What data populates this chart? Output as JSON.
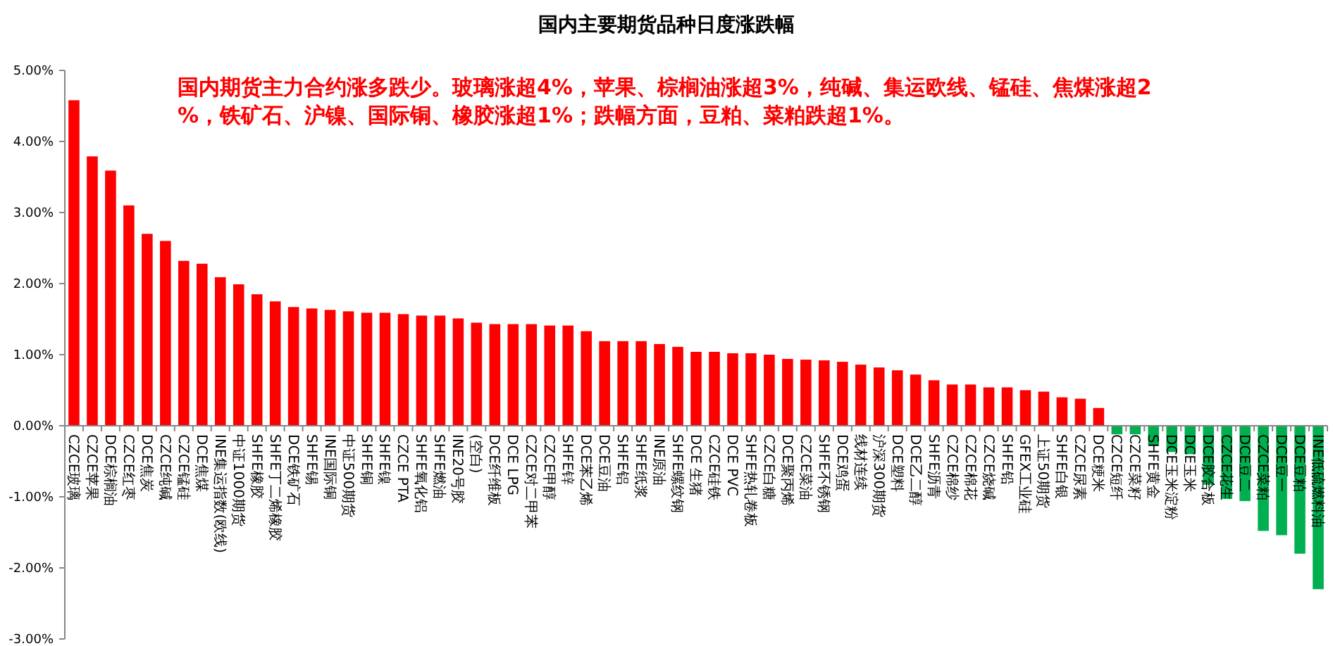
{
  "chart_data": {
    "type": "bar",
    "title": "国内主要期货品种日度涨跌幅",
    "annotations": [
      "国内期货主力合约涨多跌少。玻璃涨超4%，苹果、棕榈油涨超3%，纯碱、集运欧线、锰硅、焦煤涨超2%，铁矿石、沪镍、国际铜、橡胶涨超1%；跌幅方面，豆粕、菜粕跌超1%。"
    ],
    "categories": [
      "CZCE玻璃",
      "CZCE苹果",
      "DCE棕榈油",
      "CZCE红枣",
      "DCE焦炭",
      "CZCE纯碱",
      "CZCE锰硅",
      "DCE焦煤",
      "INE集运指数(欧线)",
      "中证1000期货",
      "SHFE橡胶",
      "SHFE丁二烯橡胶",
      "DCE铁矿石",
      "SHFE锡",
      "INE国际铜",
      "中证500期货",
      "SHFE铜",
      "SHFE镍",
      "CZCE PTA",
      "SHFE氧化铝",
      "SHFE燃油",
      "INE20号胶",
      "(空白)",
      "DCE纤维板",
      "DCE LPG",
      "CZCE对二甲苯",
      "CZCE甲醇",
      "SHFE锌",
      "DCE苯乙烯",
      "DCE豆油",
      "SHFE铝",
      "SHFE纸浆",
      "INE原油",
      "SHFE螺纹钢",
      "DCE 生猪",
      "CZCE硅铁",
      "DCE PVC",
      "SHFE热轧卷板",
      "CZCE白糖",
      "DCE聚丙烯",
      "CZCE菜油",
      "SHFE不锈钢",
      "DCE鸡蛋",
      "线材连续",
      "沪深300期货",
      "DCE塑料",
      "DCE乙二醇",
      "SHFE沥青",
      "CZCE棉纱",
      "CZCE棉花",
      "CZCE烧碱",
      "SHFE铅",
      "GFEX工业硅",
      "上证50期货",
      "SHFE白银",
      "CZCE尿素",
      "DCE粳米",
      "CZCE短纤",
      "CZCE菜籽",
      "SHFE黄金",
      "DCE玉米淀粉",
      "DCE玉米",
      "DCE胶合板",
      "CZCE花生",
      "DCE豆二",
      "CZCE菜粕",
      "DCE豆一",
      "DCE豆粕",
      "INE低硫燃料油"
    ],
    "values": [
      4.58,
      3.79,
      3.59,
      3.1,
      2.7,
      2.6,
      2.32,
      2.28,
      2.09,
      1.99,
      1.85,
      1.75,
      1.67,
      1.65,
      1.63,
      1.61,
      1.59,
      1.59,
      1.57,
      1.55,
      1.55,
      1.51,
      1.45,
      1.43,
      1.43,
      1.43,
      1.41,
      1.41,
      1.33,
      1.19,
      1.19,
      1.19,
      1.15,
      1.11,
      1.04,
      1.04,
      1.02,
      1.02,
      1.0,
      0.94,
      0.93,
      0.92,
      0.9,
      0.86,
      0.82,
      0.78,
      0.72,
      0.64,
      0.58,
      0.58,
      0.54,
      0.54,
      0.5,
      0.48,
      0.4,
      0.38,
      0.25,
      -0.12,
      -0.12,
      -0.27,
      -0.37,
      -0.4,
      -0.83,
      -1.03,
      -1.06,
      -1.48,
      -1.54,
      -1.8,
      -2.3
    ],
    "colors": [
      "#ff0000",
      "#ff0000",
      "#ff0000",
      "#ff0000",
      "#ff0000",
      "#ff0000",
      "#ff0000",
      "#ff0000",
      "#ff0000",
      "#ff0000",
      "#ff0000",
      "#ff0000",
      "#ff0000",
      "#ff0000",
      "#ff0000",
      "#ff0000",
      "#ff0000",
      "#ff0000",
      "#ff0000",
      "#ff0000",
      "#ff0000",
      "#ff0000",
      "#ff0000",
      "#ff0000",
      "#ff0000",
      "#ff0000",
      "#ff0000",
      "#ff0000",
      "#ff0000",
      "#ff0000",
      "#ff0000",
      "#ff0000",
      "#ff0000",
      "#ff0000",
      "#ff0000",
      "#ff0000",
      "#ff0000",
      "#ff0000",
      "#ff0000",
      "#ff0000",
      "#ff0000",
      "#ff0000",
      "#ff0000",
      "#ff0000",
      "#ff0000",
      "#ff0000",
      "#ff0000",
      "#ff0000",
      "#ff0000",
      "#ff0000",
      "#ff0000",
      "#ff0000",
      "#ff0000",
      "#ff0000",
      "#ff0000",
      "#ff0000",
      "#ff0000",
      "#00b050",
      "#00b050",
      "#00b050",
      "#00b050",
      "#00b050",
      "#00b050",
      "#00b050",
      "#00b050",
      "#00b050",
      "#00b050",
      "#00b050",
      "#00b050"
    ],
    "ylim": [
      -3,
      5
    ],
    "yticks": [
      {
        "value": -3,
        "label": "-3.00%"
      },
      {
        "value": -2,
        "label": "-2.00%"
      },
      {
        "value": -1,
        "label": "-1.00%"
      },
      {
        "value": 0,
        "label": "0.00%"
      },
      {
        "value": 1,
        "label": "1.00%"
      },
      {
        "value": 2,
        "label": "2.00%"
      },
      {
        "value": 3,
        "label": "3.00%"
      },
      {
        "value": 4,
        "label": "4.00%"
      },
      {
        "value": 5,
        "label": "5.00%"
      }
    ],
    "grid": false
  }
}
